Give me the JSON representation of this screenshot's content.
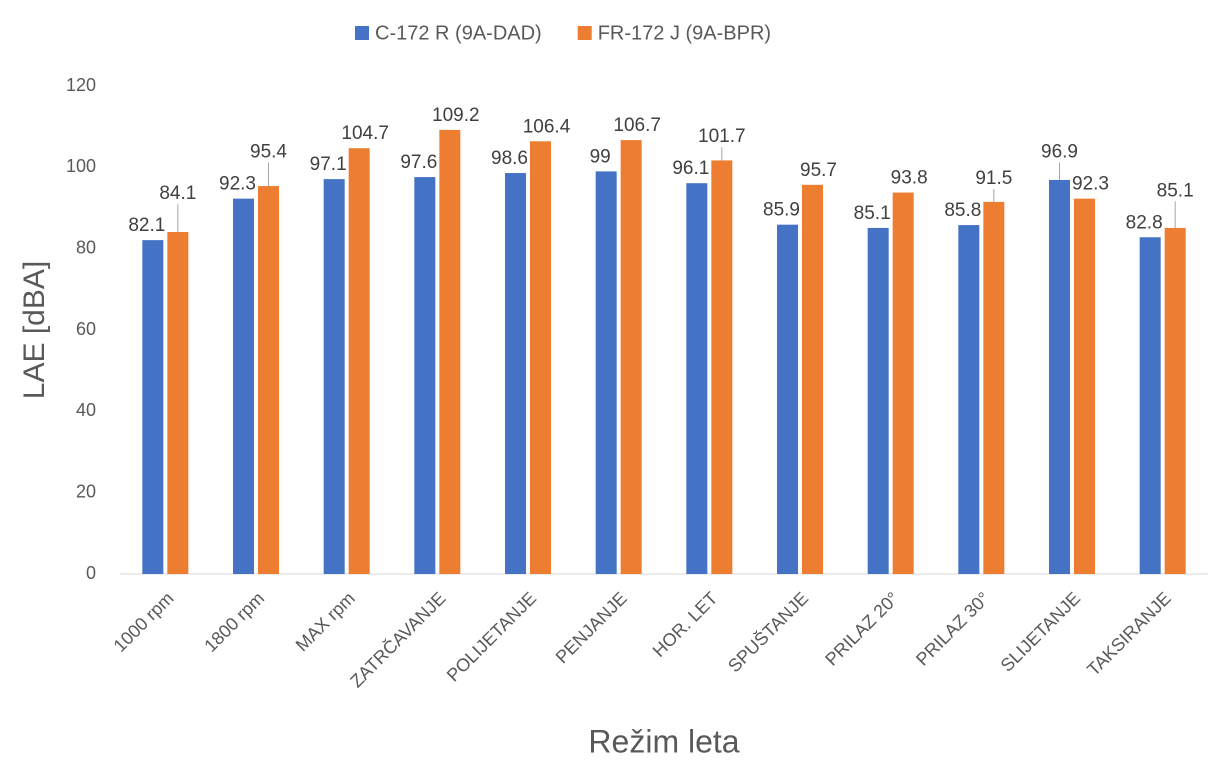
{
  "chart_data": {
    "type": "bar",
    "x_label": "Režim leta",
    "y_label": "LAE [dBA]",
    "categories": [
      "1000 rpm",
      "1800 rpm",
      "MAX rpm",
      "ZATRČAVANJE",
      "POLIJETANJE",
      "PENJANJE",
      "HOR. LET",
      "SPUŠTANJE",
      "PRILAZ 20°",
      "PRILAZ 30°",
      "SLIJETANJE",
      "TAKSIRANJE"
    ],
    "series": [
      {
        "name": "C-172 R (9A-DAD)",
        "color": "#4472c4",
        "values": [
          82.1,
          92.3,
          97.1,
          97.6,
          98.6,
          99,
          96.1,
          85.9,
          85.1,
          85.8,
          96.9,
          82.8
        ]
      },
      {
        "name": "FR-172 J (9A-BPR)",
        "color": "#ed7d31",
        "values": [
          84.1,
          95.4,
          104.7,
          109.2,
          106.4,
          106.7,
          101.7,
          95.7,
          93.8,
          91.5,
          92.3,
          85.1
        ]
      }
    ],
    "ylim": [
      0,
      120
    ],
    "yticks": [
      0,
      20,
      40,
      60,
      80,
      100,
      120
    ],
    "grid": false,
    "legend": "top"
  }
}
